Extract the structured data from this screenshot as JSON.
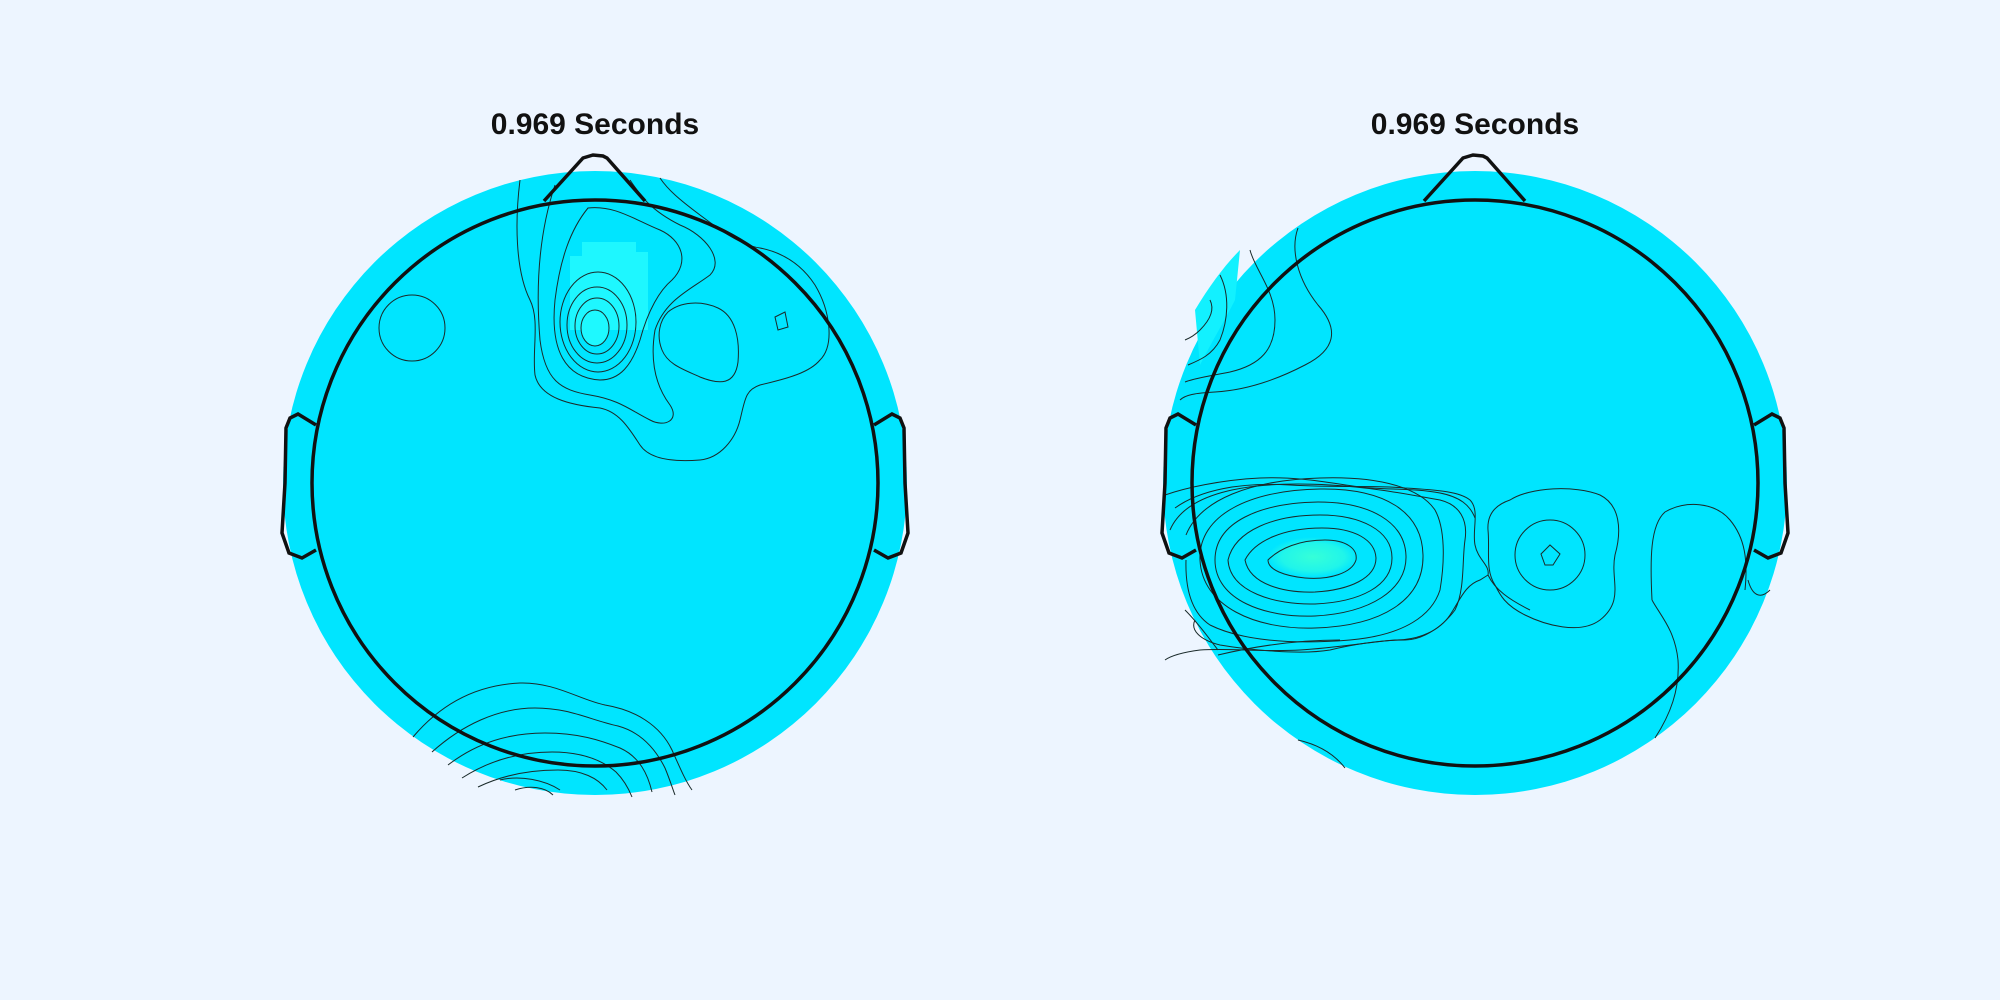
{
  "figure": {
    "background": "#edf5ff",
    "colormap_base": "#00e5ff",
    "colormap_high": "#36ffd8"
  },
  "chart_data": [
    {
      "type": "heatmap",
      "subtype": "scalp-topography",
      "title": "0.969 Seconds",
      "xlabel": "",
      "ylabel": "",
      "legend": "none",
      "grid": false,
      "features": [
        {
          "kind": "local-peak",
          "region": "frontal-midline",
          "relative_level": 0.35,
          "contour_levels": 7
        },
        {
          "kind": "local-peak",
          "region": "frontal-right",
          "relative_level": 0.1,
          "contour_levels": 2
        },
        {
          "kind": "local-peak",
          "region": "frontal-left",
          "relative_level": 0.05,
          "contour_levels": 1
        },
        {
          "kind": "local-peak",
          "region": "occipital",
          "relative_level": 0.15,
          "contour_levels": 6
        }
      ]
    },
    {
      "type": "heatmap",
      "subtype": "scalp-topography",
      "title": "0.969 Seconds",
      "xlabel": "",
      "ylabel": "",
      "legend": "none",
      "grid": false,
      "features": [
        {
          "kind": "local-peak",
          "region": "central-left",
          "relative_level": 0.8,
          "contour_levels": 7
        },
        {
          "kind": "local-peak",
          "region": "central-midline",
          "relative_level": 0.3,
          "contour_levels": 4
        },
        {
          "kind": "local-peak",
          "region": "fronto-temporal-left",
          "relative_level": 0.2,
          "contour_levels": 4
        },
        {
          "kind": "local-peak",
          "region": "central-right",
          "relative_level": 0.05,
          "contour_levels": 1
        }
      ]
    }
  ]
}
